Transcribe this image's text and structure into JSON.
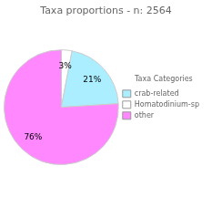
{
  "chart_data": {
    "type": "pie",
    "title": "Taxa proportions - n: 2564",
    "categories": [
      "Homatodinium-sp",
      "crab-related",
      "other"
    ],
    "values": [
      3,
      21,
      76
    ],
    "value_labels": [
      "3%",
      "21%",
      "76%"
    ],
    "colors": [
      "#FFFFFF",
      "#AAEEFF",
      "#FF88FF"
    ],
    "data_labels": true,
    "legend": "right",
    "legend_title": "Taxa Categories",
    "legend_entries": [
      "crab-related",
      "Homatodinium-sp",
      "other"
    ]
  }
}
